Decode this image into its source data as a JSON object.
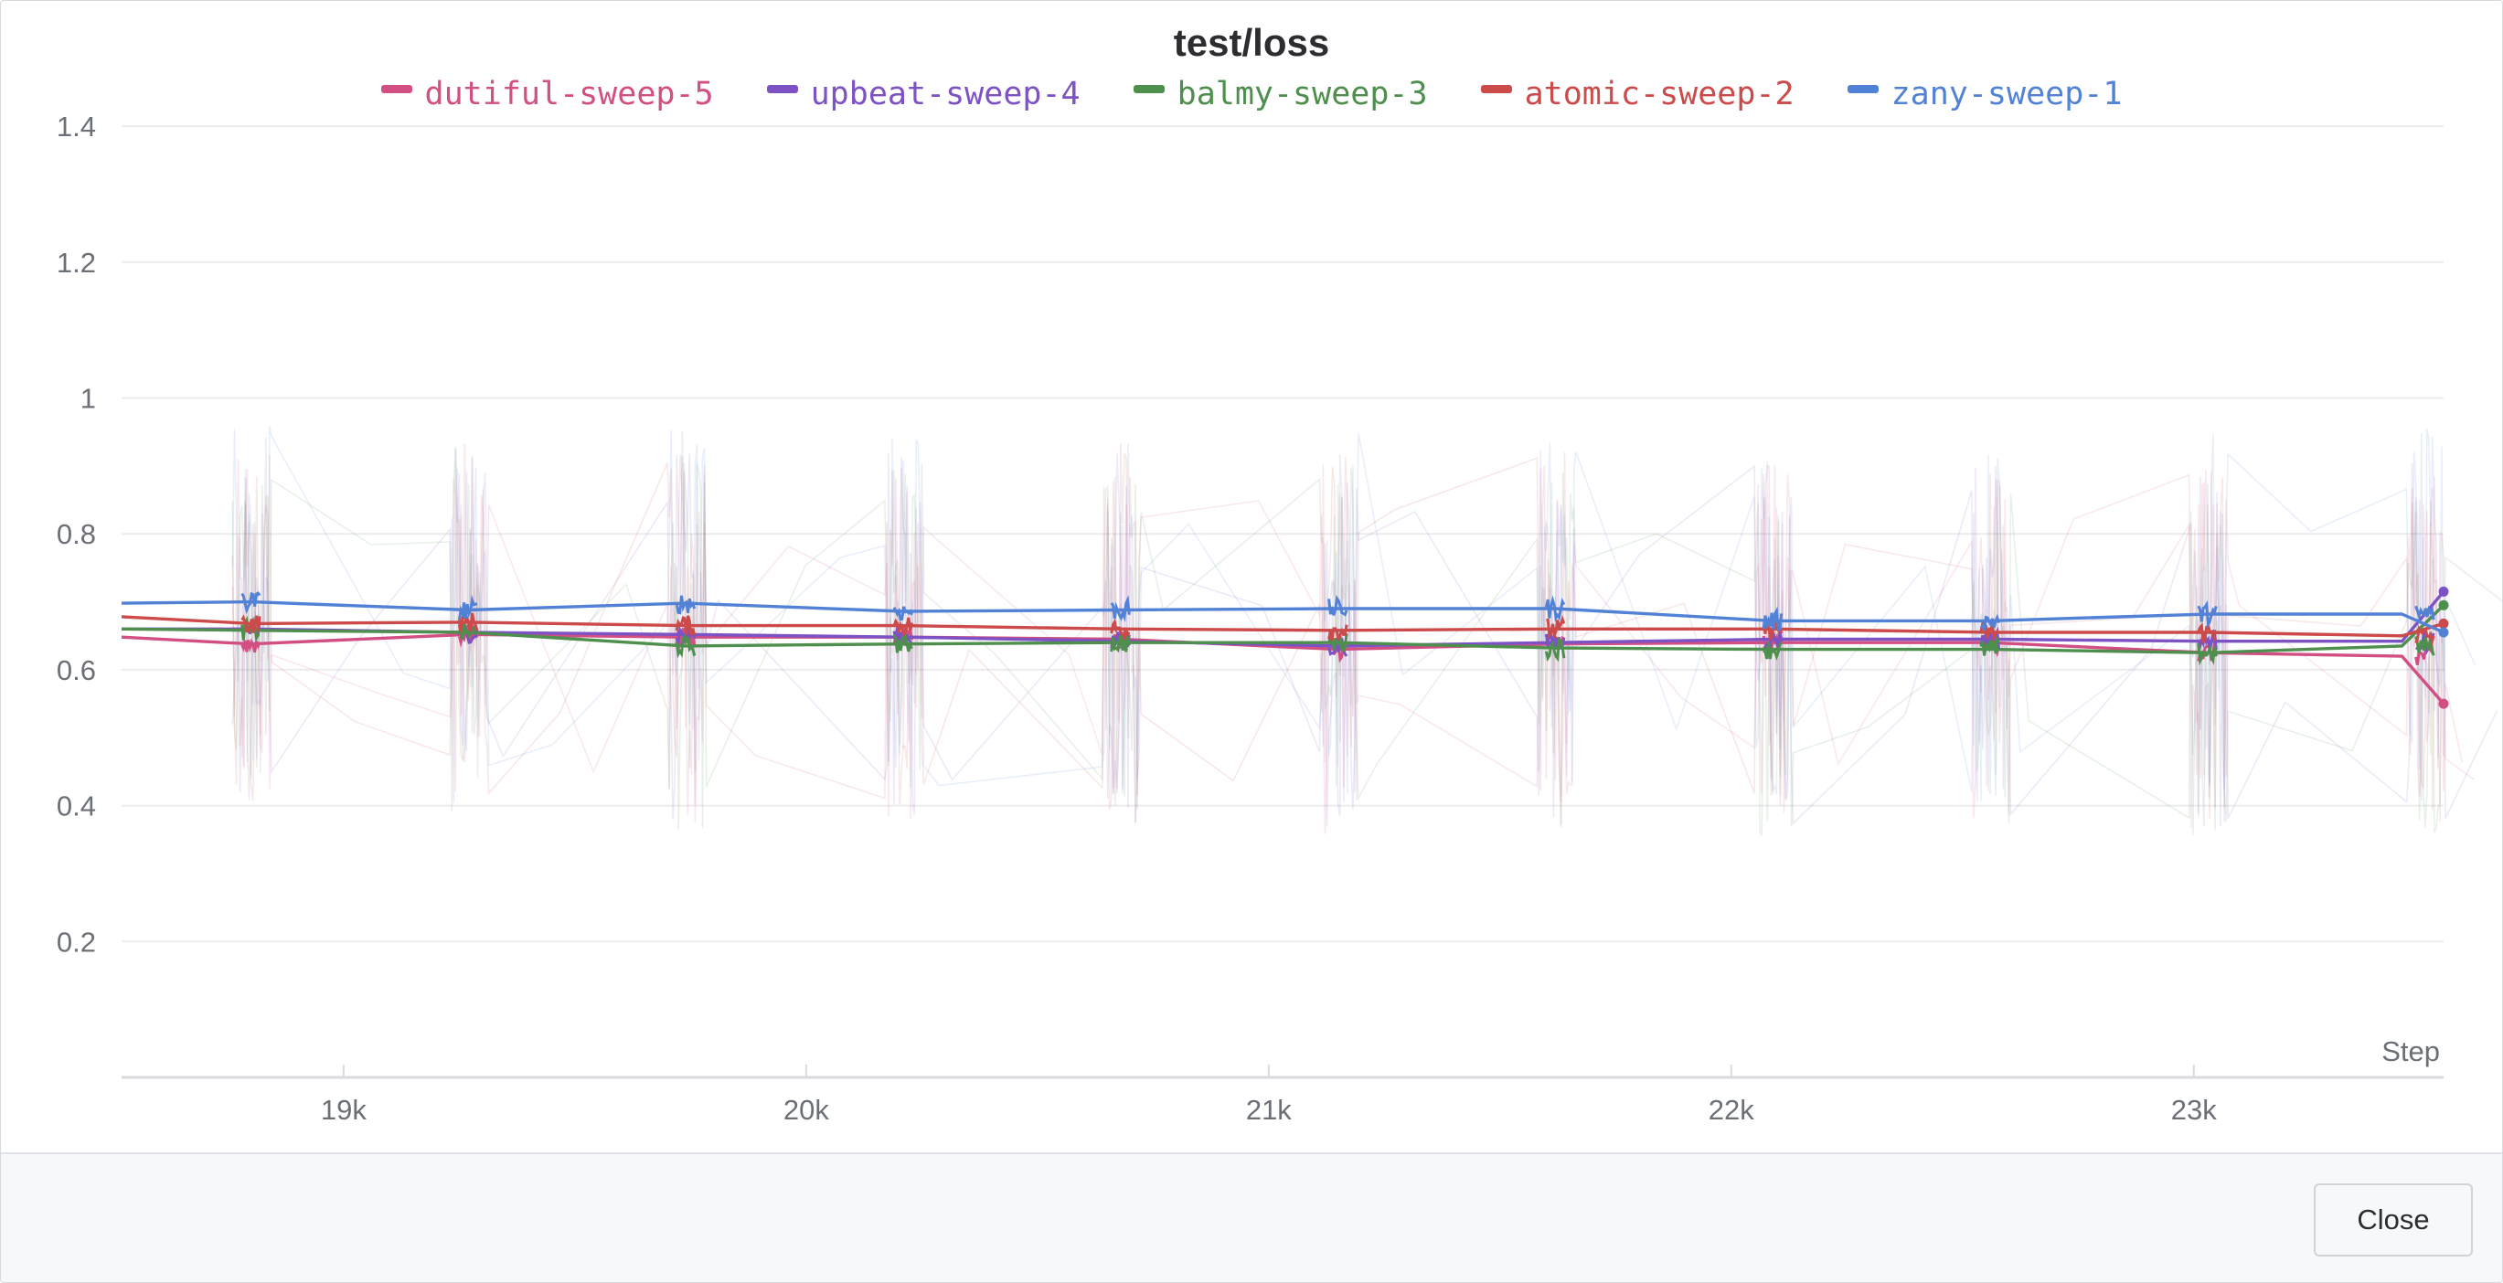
{
  "modal": {
    "close_label": "Close"
  },
  "chart_data": {
    "type": "line",
    "title": "test/loss",
    "xlabel": "Step",
    "ylabel": "",
    "xlim": [
      18520,
      23540
    ],
    "ylim": [
      0,
      1.45
    ],
    "grid": true,
    "legend_position": "top-center",
    "x_ticks": [
      19000,
      20000,
      21000,
      22000,
      23000
    ],
    "x_tick_labels": [
      "19k",
      "20k",
      "21k",
      "22k",
      "23k"
    ],
    "y_ticks": [
      0.2,
      0.4,
      0.6,
      0.8,
      1.0,
      1.2,
      1.4
    ],
    "y_tick_labels": [
      "0.2",
      "0.4",
      "0.6",
      "0.8",
      "1",
      "1.2",
      "1.4"
    ],
    "burst_steps": [
      18800,
      19270,
      19740,
      20210,
      20680,
      21150,
      21620,
      22090,
      22560,
      23030,
      23500
    ],
    "series": [
      {
        "name": "dutiful-sweep-5",
        "color": "#d24f83",
        "x": [
          18520,
          18800,
          19270,
          19740,
          20210,
          20680,
          21150,
          21620,
          22090,
          22560,
          23030,
          23450,
          23540
        ],
        "values": [
          0.648,
          0.638,
          0.652,
          0.648,
          0.648,
          0.645,
          0.63,
          0.638,
          0.64,
          0.64,
          0.625,
          0.62,
          0.55
        ]
      },
      {
        "name": "upbeat-sweep-4",
        "color": "#7c52c4",
        "x": [
          18520,
          18800,
          19270,
          19740,
          20210,
          20680,
          21150,
          21620,
          22090,
          22560,
          23030,
          23450,
          23540
        ],
        "values": [
          0.66,
          0.66,
          0.655,
          0.652,
          0.648,
          0.642,
          0.635,
          0.64,
          0.645,
          0.645,
          0.642,
          0.642,
          0.715
        ]
      },
      {
        "name": "balmy-sweep-3",
        "color": "#4e8f4e",
        "x": [
          18520,
          18800,
          19270,
          19740,
          20210,
          20680,
          21150,
          21620,
          22090,
          22560,
          23030,
          23450,
          23540
        ],
        "values": [
          0.66,
          0.658,
          0.655,
          0.635,
          0.638,
          0.64,
          0.64,
          0.632,
          0.63,
          0.63,
          0.625,
          0.635,
          0.695
        ]
      },
      {
        "name": "atomic-sweep-2",
        "color": "#cc4a4a",
        "x": [
          18520,
          18800,
          19270,
          19740,
          20210,
          20680,
          21150,
          21620,
          22090,
          22560,
          23030,
          23450,
          23540
        ],
        "values": [
          0.678,
          0.668,
          0.67,
          0.665,
          0.665,
          0.66,
          0.658,
          0.66,
          0.66,
          0.655,
          0.655,
          0.65,
          0.668
        ]
      },
      {
        "name": "zany-sweep-1",
        "color": "#5282d6",
        "x": [
          18520,
          18800,
          19270,
          19740,
          20210,
          20680,
          21150,
          21620,
          22090,
          22560,
          23030,
          23450,
          23540
        ],
        "values": [
          0.698,
          0.7,
          0.688,
          0.698,
          0.686,
          0.688,
          0.69,
          0.69,
          0.672,
          0.672,
          0.682,
          0.682,
          0.655
        ]
      }
    ]
  }
}
